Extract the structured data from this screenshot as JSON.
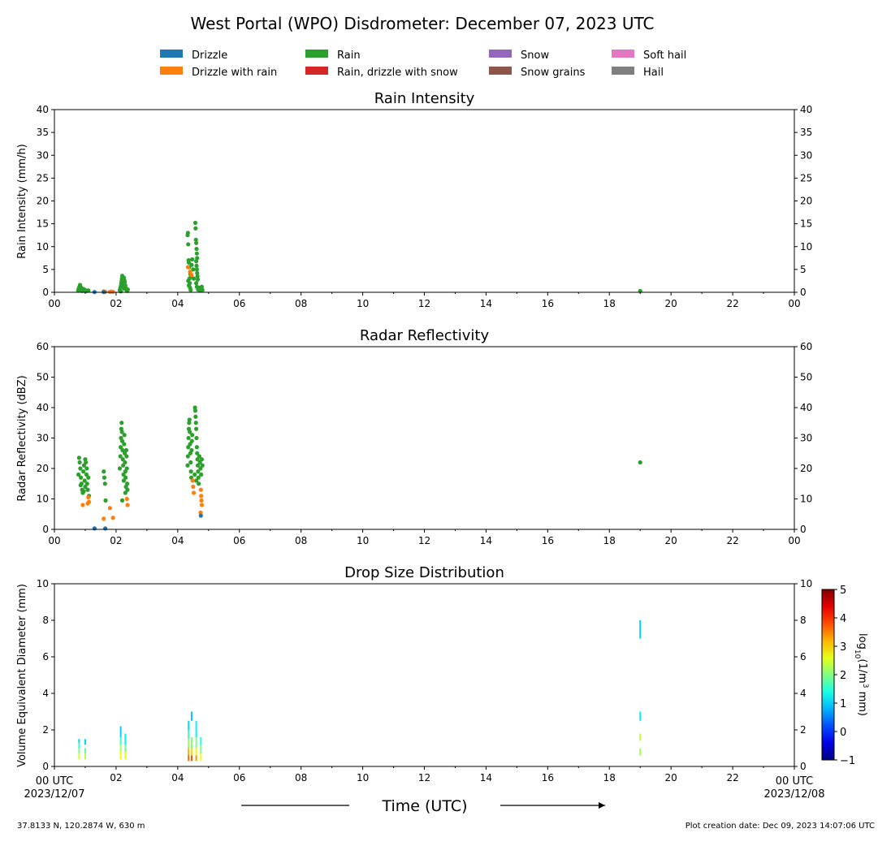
{
  "figure": {
    "title": "West Portal (WPO) Disdrometer: December 07, 2023 UTC",
    "footer_left": "37.8133 N, 120.2874 W, 630 m",
    "footer_right": "Plot creation date: Dec 09, 2023 14:07:06 UTC",
    "xlabel": "Time (UTC)",
    "x_start_label_1": "00 UTC",
    "x_start_label_2": "2023/12/07",
    "x_end_label_1": "00 UTC",
    "x_end_label_2": "2023/12/08"
  },
  "legend": [
    {
      "label": "Drizzle",
      "color": "#1f77b4"
    },
    {
      "label": "Drizzle with rain",
      "color": "#ff7f0e"
    },
    {
      "label": "Rain",
      "color": "#2ca02c"
    },
    {
      "label": "Rain, drizzle with snow",
      "color": "#d62728"
    },
    {
      "label": "Snow",
      "color": "#9467bd"
    },
    {
      "label": "Snow grains",
      "color": "#8c564b"
    },
    {
      "label": "Soft hail",
      "color": "#e377c2"
    },
    {
      "label": "Hail",
      "color": "#7f7f7f"
    }
  ],
  "chart_data": [
    {
      "type": "scatter",
      "title": "Rain Intensity",
      "ylabel": "Rain Intensity (mm/h)",
      "xlim": [
        0,
        24
      ],
      "ylim": [
        0,
        40
      ],
      "yticks": [
        0,
        5,
        10,
        15,
        20,
        25,
        30,
        35,
        40
      ],
      "xtick_labels": [
        "00",
        "02",
        "04",
        "06",
        "08",
        "10",
        "12",
        "14",
        "16",
        "18",
        "20",
        "22",
        "00"
      ],
      "series": [
        {
          "name": "Rain",
          "color": "#2ca02c",
          "points": [
            [
              0.77,
              0.4
            ],
            [
              0.79,
              0.8
            ],
            [
              0.81,
              1.2
            ],
            [
              0.83,
              1.6
            ],
            [
              0.85,
              0.6
            ],
            [
              0.87,
              1.0
            ],
            [
              0.9,
              0.3
            ],
            [
              0.95,
              0.7
            ],
            [
              1.0,
              0.5
            ],
            [
              1.05,
              0.3
            ],
            [
              1.1,
              0.4
            ],
            [
              2.12,
              0.5
            ],
            [
              2.14,
              1.0
            ],
            [
              2.16,
              1.5
            ],
            [
              2.17,
              2.0
            ],
            [
              2.18,
              2.5
            ],
            [
              2.19,
              3.0
            ],
            [
              2.2,
              3.6
            ],
            [
              2.21,
              2.8
            ],
            [
              2.22,
              1.8
            ],
            [
              2.24,
              1.2
            ],
            [
              2.26,
              0.8
            ],
            [
              2.28,
              2.2
            ],
            [
              2.3,
              1.5
            ],
            [
              2.32,
              0.9
            ],
            [
              2.34,
              0.5
            ],
            [
              2.36,
              0.3
            ],
            [
              2.38,
              0.6
            ],
            [
              2.25,
              3.2
            ],
            [
              2.27,
              2.6
            ],
            [
              2.15,
              0.2
            ],
            [
              4.32,
              12.5
            ],
            [
              4.33,
              13.0
            ],
            [
              4.34,
              10.5
            ],
            [
              4.35,
              7.0
            ],
            [
              4.36,
              6.5
            ],
            [
              4.37,
              5.5
            ],
            [
              4.38,
              3.0
            ],
            [
              4.39,
              2.0
            ],
            [
              4.4,
              1.0
            ],
            [
              4.41,
              4.0
            ],
            [
              4.42,
              0.5
            ],
            [
              4.43,
              3.5
            ],
            [
              4.34,
              2.5
            ],
            [
              4.36,
              1.5
            ],
            [
              4.45,
              6.0
            ],
            [
              4.47,
              7.2
            ],
            [
              4.5,
              5.0
            ],
            [
              4.52,
              3.0
            ],
            [
              4.57,
              15.2
            ],
            [
              4.58,
              14.0
            ],
            [
              4.59,
              11.5
            ],
            [
              4.6,
              10.8
            ],
            [
              4.61,
              9.5
            ],
            [
              4.62,
              8.5
            ],
            [
              4.63,
              7.5
            ],
            [
              4.6,
              6.8
            ],
            [
              4.61,
              5.8
            ],
            [
              4.62,
              5.0
            ],
            [
              4.63,
              4.2
            ],
            [
              4.64,
              3.5
            ],
            [
              4.65,
              2.8
            ],
            [
              4.6,
              2.0
            ],
            [
              4.62,
              1.2
            ],
            [
              4.66,
              0.6
            ],
            [
              4.7,
              1.0
            ],
            [
              4.72,
              0.4
            ],
            [
              4.75,
              0.8
            ],
            [
              4.78,
              1.2
            ],
            [
              4.8,
              0.5
            ],
            [
              19.0,
              0.3
            ]
          ]
        },
        {
          "name": "Drizzle with rain",
          "color": "#ff7f0e",
          "points": [
            [
              1.6,
              0.2
            ],
            [
              1.65,
              0.1
            ],
            [
              1.8,
              0.1
            ],
            [
              1.85,
              0.15
            ],
            [
              1.9,
              0.1
            ],
            [
              4.33,
              5.5
            ],
            [
              4.4,
              4.5
            ],
            [
              4.45,
              3.8
            ]
          ]
        },
        {
          "name": "Drizzle",
          "color": "#1f77b4",
          "points": [
            [
              1.3,
              0.05
            ],
            [
              1.6,
              0.05
            ]
          ]
        }
      ]
    },
    {
      "type": "scatter",
      "title": "Radar Reflectivity",
      "ylabel": "Radar Reflectivity (dBZ)",
      "xlim": [
        0,
        24
      ],
      "ylim": [
        0,
        60
      ],
      "yticks": [
        0,
        10,
        20,
        30,
        40,
        50,
        60
      ],
      "xtick_labels": [
        "00",
        "02",
        "04",
        "06",
        "08",
        "10",
        "12",
        "14",
        "16",
        "18",
        "20",
        "22",
        "00"
      ],
      "series": [
        {
          "name": "Rain",
          "color": "#2ca02c",
          "points": [
            [
              0.78,
              18
            ],
            [
              0.8,
              23.5
            ],
            [
              0.82,
              22
            ],
            [
              0.84,
              20
            ],
            [
              0.86,
              17
            ],
            [
              0.88,
              15
            ],
            [
              0.9,
              13
            ],
            [
              0.92,
              12
            ],
            [
              0.94,
              19
            ],
            [
              0.96,
              21
            ],
            [
              0.98,
              16
            ],
            [
              1.0,
              14
            ],
            [
              1.02,
              22
            ],
            [
              1.04,
              18
            ],
            [
              1.06,
              15
            ],
            [
              1.08,
              13
            ],
            [
              1.1,
              17
            ],
            [
              1.12,
              11
            ],
            [
              0.85,
              14.5
            ],
            [
              0.95,
              12.5
            ],
            [
              1.05,
              20
            ],
            [
              1.0,
              23
            ],
            [
              1.6,
              19
            ],
            [
              1.62,
              17
            ],
            [
              1.64,
              15
            ],
            [
              1.66,
              9.5
            ],
            [
              2.12,
              20
            ],
            [
              2.14,
              24
            ],
            [
              2.15,
              27
            ],
            [
              2.16,
              30
            ],
            [
              2.17,
              33
            ],
            [
              2.18,
              35
            ],
            [
              2.19,
              32
            ],
            [
              2.2,
              29
            ],
            [
              2.21,
              26
            ],
            [
              2.22,
              23
            ],
            [
              2.23,
              21
            ],
            [
              2.24,
              18
            ],
            [
              2.25,
              16
            ],
            [
              2.26,
              28
            ],
            [
              2.27,
              31
            ],
            [
              2.28,
              25
            ],
            [
              2.29,
              22
            ],
            [
              2.3,
              19
            ],
            [
              2.31,
              17
            ],
            [
              2.32,
              14
            ],
            [
              2.33,
              26
            ],
            [
              2.34,
              24
            ],
            [
              2.35,
              20
            ],
            [
              2.36,
              15
            ],
            [
              2.37,
              13
            ],
            [
              2.2,
              9.5
            ],
            [
              2.3,
              12
            ],
            [
              4.32,
              21
            ],
            [
              4.33,
              24
            ],
            [
              4.34,
              27
            ],
            [
              4.35,
              30
            ],
            [
              4.36,
              33
            ],
            [
              4.37,
              35
            ],
            [
              4.38,
              36
            ],
            [
              4.39,
              32
            ],
            [
              4.4,
              28
            ],
            [
              4.41,
              25
            ],
            [
              4.42,
              22
            ],
            [
              4.43,
              19
            ],
            [
              4.44,
              17
            ],
            [
              4.45,
              26
            ],
            [
              4.46,
              29
            ],
            [
              4.47,
              31
            ],
            [
              4.56,
              40
            ],
            [
              4.57,
              39
            ],
            [
              4.58,
              37
            ],
            [
              4.59,
              35
            ],
            [
              4.6,
              33
            ],
            [
              4.61,
              30
            ],
            [
              4.62,
              27
            ],
            [
              4.63,
              25
            ],
            [
              4.64,
              23
            ],
            [
              4.65,
              21
            ],
            [
              4.66,
              19
            ],
            [
              4.67,
              17
            ],
            [
              4.68,
              15
            ],
            [
              4.7,
              24
            ],
            [
              4.72,
              22
            ],
            [
              4.74,
              20
            ],
            [
              4.76,
              18
            ],
            [
              4.78,
              23
            ],
            [
              4.8,
              21
            ],
            [
              4.55,
              18
            ],
            [
              4.6,
              16
            ],
            [
              19.0,
              22
            ]
          ]
        },
        {
          "name": "Drizzle with rain",
          "color": "#ff7f0e",
          "points": [
            [
              0.92,
              8
            ],
            [
              1.08,
              8.5
            ],
            [
              1.1,
              10.5
            ],
            [
              1.12,
              9
            ],
            [
              1.6,
              3.5
            ],
            [
              1.8,
              7
            ],
            [
              1.9,
              3.8
            ],
            [
              2.35,
              10
            ],
            [
              2.37,
              8
            ],
            [
              4.5,
              14
            ],
            [
              4.52,
              12
            ],
            [
              4.48,
              16
            ],
            [
              4.75,
              13
            ],
            [
              4.76,
              11
            ],
            [
              4.77,
              9.5
            ],
            [
              4.78,
              8
            ],
            [
              4.74,
              5.5
            ]
          ]
        },
        {
          "name": "Drizzle",
          "color": "#1f77b4",
          "points": [
            [
              1.3,
              0.3
            ],
            [
              1.65,
              0.3
            ],
            [
              4.75,
              4.5
            ]
          ]
        }
      ]
    },
    {
      "type": "heatmap",
      "title": "Drop Size Distribution",
      "ylabel": "Volume Equivalent Diameter (mm)",
      "xlim": [
        0,
        24
      ],
      "ylim": [
        0,
        10
      ],
      "yticks": [
        0,
        2,
        4,
        6,
        8,
        10
      ],
      "xtick_labels": [
        "00",
        "02",
        "04",
        "06",
        "08",
        "10",
        "12",
        "14",
        "16",
        "18",
        "20",
        "22",
        "00"
      ],
      "colorbar": {
        "label": "log10(1/m3 mm)",
        "min": -1,
        "max": 5,
        "ticks": [
          -1,
          0,
          1,
          2,
          3,
          4,
          5
        ]
      },
      "cells": [
        [
          0.8,
          0.4,
          0.7,
          2.5
        ],
        [
          0.8,
          0.7,
          1.0,
          2.0
        ],
        [
          0.8,
          1.0,
          1.3,
          1.5
        ],
        [
          0.8,
          1.3,
          1.5,
          1.0
        ],
        [
          1.0,
          0.4,
          0.7,
          2.3
        ],
        [
          1.0,
          0.7,
          1.0,
          1.8
        ],
        [
          1.0,
          1.2,
          1.5,
          1.0
        ],
        [
          2.15,
          0.4,
          0.8,
          2.8
        ],
        [
          2.15,
          0.8,
          1.2,
          2.2
        ],
        [
          2.15,
          1.2,
          1.6,
          1.6
        ],
        [
          2.15,
          1.6,
          2.2,
          1.0
        ],
        [
          2.3,
          0.4,
          0.8,
          2.6
        ],
        [
          2.3,
          0.8,
          1.2,
          1.9
        ],
        [
          2.3,
          1.2,
          1.8,
          1.2
        ],
        [
          4.35,
          0.3,
          0.6,
          3.6
        ],
        [
          4.35,
          0.6,
          1.0,
          3.2
        ],
        [
          4.35,
          1.0,
          1.5,
          2.2
        ],
        [
          4.35,
          1.5,
          2.0,
          1.6
        ],
        [
          4.35,
          2.0,
          2.5,
          1.1
        ],
        [
          4.45,
          0.3,
          0.6,
          3.8
        ],
        [
          4.45,
          0.6,
          1.0,
          3.0
        ],
        [
          4.45,
          1.0,
          1.6,
          2.0
        ],
        [
          4.45,
          2.5,
          3.0,
          0.9
        ],
        [
          4.6,
          0.3,
          0.6,
          3.4
        ],
        [
          4.6,
          0.6,
          1.0,
          2.8
        ],
        [
          4.6,
          1.0,
          1.6,
          2.0
        ],
        [
          4.6,
          1.6,
          2.5,
          1.2
        ],
        [
          4.75,
          0.3,
          0.7,
          2.8
        ],
        [
          4.75,
          0.7,
          1.2,
          2.0
        ],
        [
          4.75,
          1.2,
          1.6,
          1.4
        ],
        [
          19.0,
          0.6,
          1.0,
          2.2
        ],
        [
          19.0,
          1.4,
          1.8,
          2.4
        ],
        [
          19.0,
          2.5,
          3.0,
          1.2
        ],
        [
          19.0,
          7.0,
          8.0,
          1.0
        ]
      ]
    }
  ]
}
